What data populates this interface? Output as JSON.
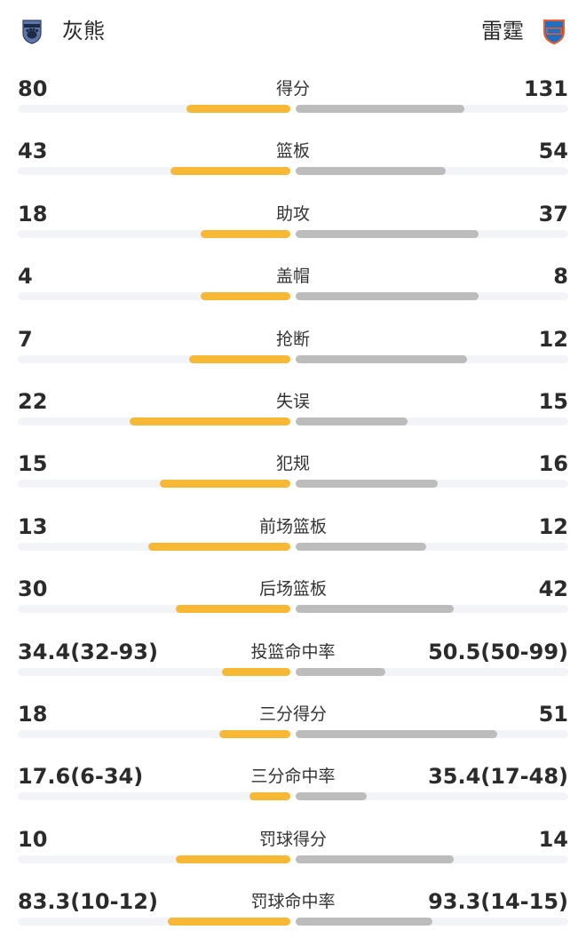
{
  "header": {
    "left_team": "灰熊",
    "right_team": "雷霆",
    "left_logo_icon": "grizzlies-logo-icon",
    "right_logo_icon": "okc-thunder-logo-icon"
  },
  "colors": {
    "left_bar": "#f6b835",
    "right_bar": "#bcbcbc",
    "track": "#f2f4f7"
  },
  "stats": [
    {
      "label": "得分",
      "left": "80",
      "right": "131",
      "left_frac": 0.38,
      "right_frac": 0.62
    },
    {
      "label": "篮板",
      "left": "43",
      "right": "54",
      "left_frac": 0.44,
      "right_frac": 0.55
    },
    {
      "label": "助攻",
      "left": "18",
      "right": "37",
      "left_frac": 0.33,
      "right_frac": 0.67
    },
    {
      "label": "盖帽",
      "left": "4",
      "right": "8",
      "left_frac": 0.33,
      "right_frac": 0.67
    },
    {
      "label": "抢断",
      "left": "7",
      "right": "12",
      "left_frac": 0.37,
      "right_frac": 0.63
    },
    {
      "label": "失误",
      "left": "22",
      "right": "15",
      "left_frac": 0.59,
      "right_frac": 0.41
    },
    {
      "label": "犯规",
      "left": "15",
      "right": "16",
      "left_frac": 0.48,
      "right_frac": 0.52
    },
    {
      "label": "前场篮板",
      "left": "13",
      "right": "12",
      "left_frac": 0.52,
      "right_frac": 0.48
    },
    {
      "label": "后场篮板",
      "left": "30",
      "right": "42",
      "left_frac": 0.42,
      "right_frac": 0.58
    },
    {
      "label": "投篮命中率",
      "left": "34.4(32-93)",
      "right": "50.5(50-99)",
      "left_frac": 0.25,
      "right_frac": 0.33
    },
    {
      "label": "三分得分",
      "left": "18",
      "right": "51",
      "left_frac": 0.26,
      "right_frac": 0.74
    },
    {
      "label": "三分命中率",
      "left": "17.6(6-34)",
      "right": "35.4(17-48)",
      "left_frac": 0.15,
      "right_frac": 0.26
    },
    {
      "label": "罚球得分",
      "left": "10",
      "right": "14",
      "left_frac": 0.42,
      "right_frac": 0.58
    },
    {
      "label": "罚球命中率",
      "left": "83.3(10-12)",
      "right": "93.3(14-15)",
      "left_frac": 0.45,
      "right_frac": 0.5
    }
  ]
}
